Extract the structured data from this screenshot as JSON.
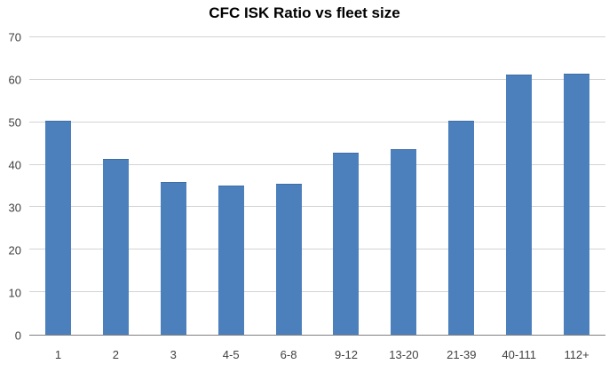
{
  "chart_data": {
    "type": "bar",
    "title": "CFC ISK Ratio vs fleet size",
    "categories": [
      "1",
      "2",
      "3",
      "4-5",
      "6-8",
      "9-12",
      "13-20",
      "21-39",
      "40-111",
      "112+"
    ],
    "values": [
      50.3,
      41.3,
      35.9,
      35.2,
      35.5,
      42.8,
      43.6,
      50.3,
      61.2,
      61.5
    ],
    "xlabel": "",
    "ylabel": "",
    "ylim": [
      0,
      70
    ],
    "yticks": [
      0,
      10,
      20,
      30,
      40,
      50,
      60,
      70
    ],
    "grid": "horizontal",
    "legend": "none",
    "bar_color": "#4c80bc",
    "gridline_color": "#d3d3d3",
    "axis_line_color": "#808080",
    "tick_label_color": "#3f3f3f",
    "background_color": "#ffffff"
  }
}
